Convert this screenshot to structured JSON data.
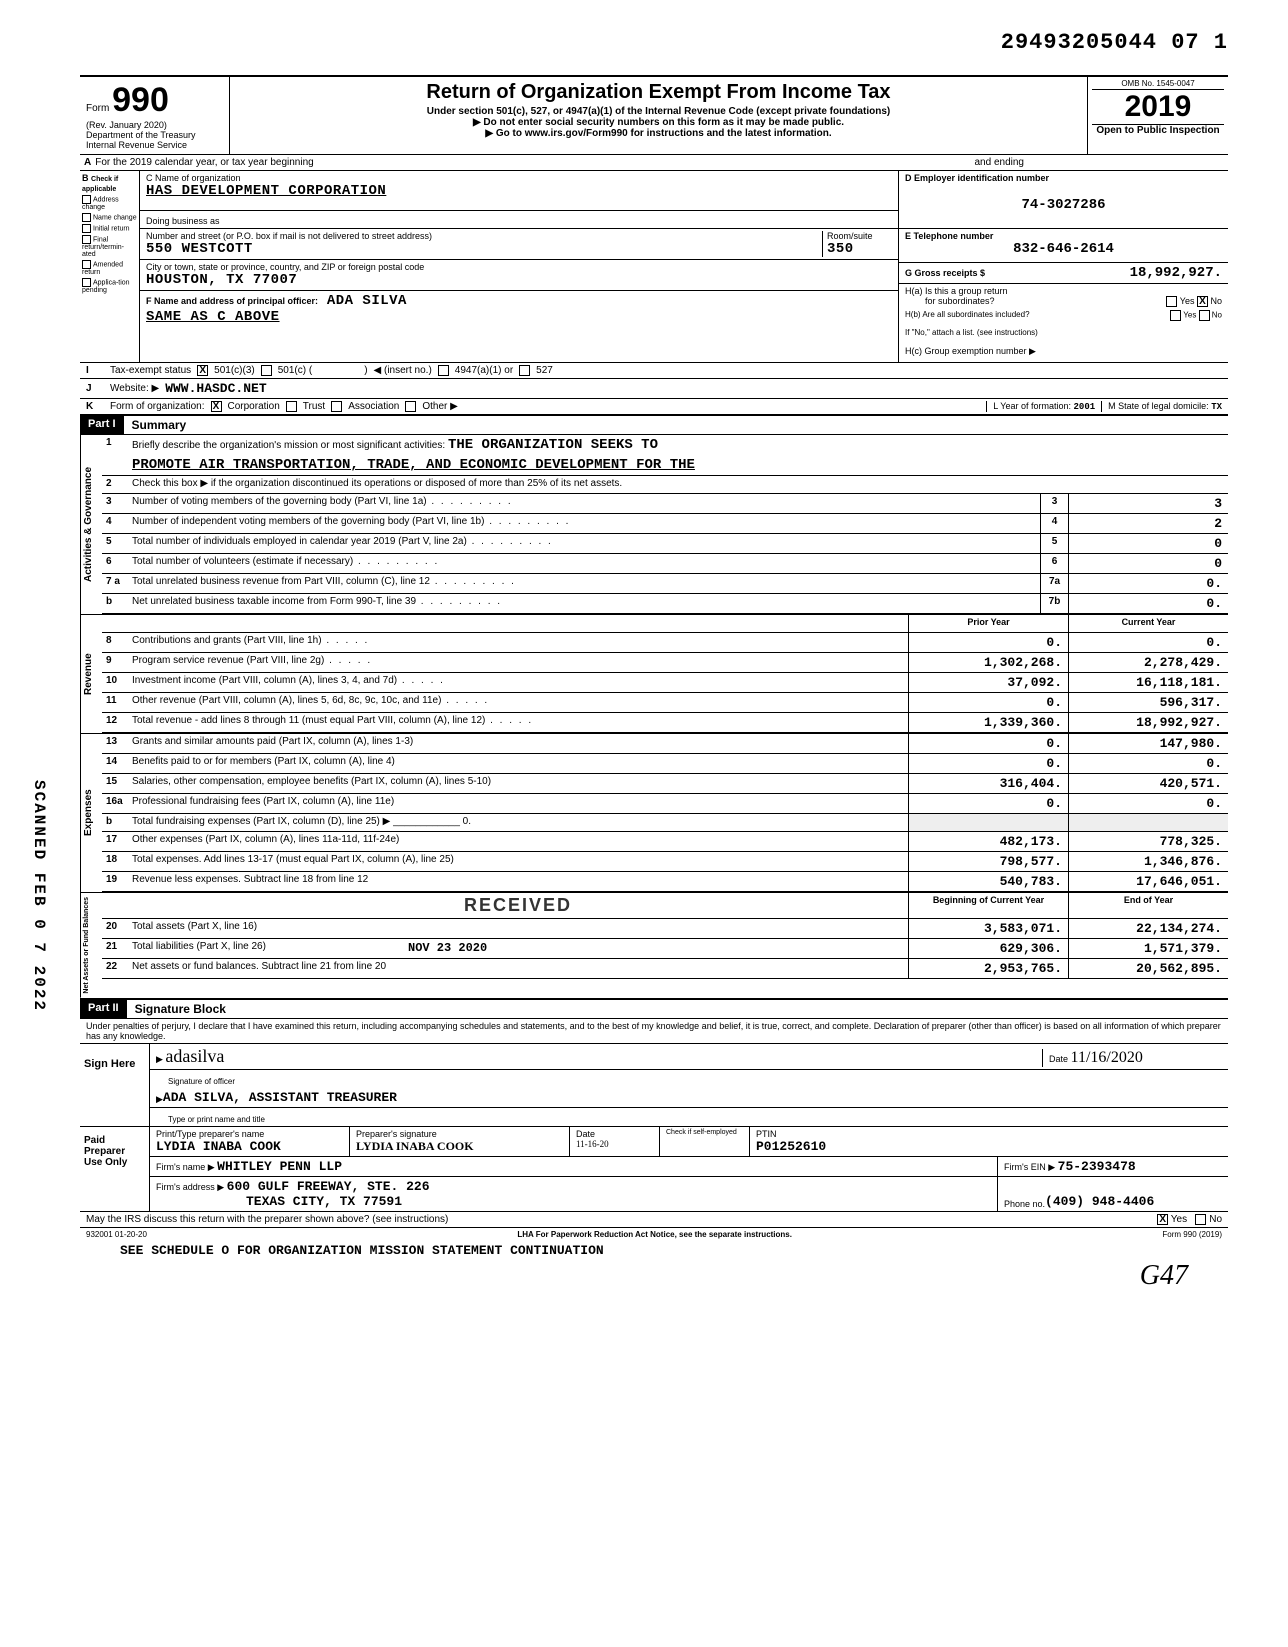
{
  "page_stamp": "29493205044 07  1",
  "scanned_stamp": "SCANNED FEB 0 7 2022",
  "header": {
    "form_label": "Form",
    "form_number": "990",
    "rev": "(Rev. January 2020)",
    "dept": "Department of the Treasury",
    "irs": "Internal Revenue Service",
    "title": "Return of Organization Exempt From Income Tax",
    "subtitle": "Under section 501(c), 527, or 4947(a)(1) of the Internal Revenue Code (except private foundations)",
    "arrow1": "▶ Do not enter social security numbers on this form as it may be made public.",
    "arrow2": "▶ Go to www.irs.gov/Form990 for instructions and the latest information.",
    "omb": "OMB No. 1545-0047",
    "year": "2019",
    "open": "Open to Public Inspection"
  },
  "row_a": {
    "label": "A",
    "text": "For the 2019 calendar year, or tax year beginning",
    "and_ending": "and ending"
  },
  "col_b": {
    "header": "B",
    "sub": "Check if applicable",
    "items": [
      "Address change",
      "Name change",
      "Initial return",
      "Final return/termin-ated",
      "Amended return",
      "Applica-tion pending"
    ]
  },
  "col_c": {
    "name_label": "C Name of organization",
    "name": "HAS DEVELOPMENT CORPORATION",
    "dba_label": "Doing business as",
    "addr_label": "Number and street (or P.O. box if mail is not delivered to street address)",
    "addr": "550 WESTCOTT",
    "room_label": "Room/suite",
    "room": "350",
    "city_label": "City or town, state or province, country, and ZIP or foreign postal code",
    "city": "HOUSTON, TX  77007",
    "officer_label": "F Name and address of principal officer:",
    "officer_name": "ADA SILVA",
    "officer_addr": "SAME AS C ABOVE"
  },
  "col_d": {
    "ein_label": "D  Employer identification number",
    "ein": "74-3027286",
    "phone_label": "E  Telephone number",
    "phone": "832-646-2614",
    "gross_label": "G  Gross receipts $",
    "gross": "18,992,927.",
    "ha_label": "H(a) Is this a group return",
    "ha_label2": "for subordinates?",
    "ha_no_checked": "X",
    "hb_label": "H(b) Are all subordinates included?",
    "hb_note": "If \"No,\" attach a list. (see instructions)",
    "hc_label": "H(c) Group exemption number ▶"
  },
  "row_i": {
    "label": "I",
    "text": "Tax-exempt status",
    "c3_checked": "X",
    "opts": [
      "501(c)(3)",
      "501(c) (",
      "◀ (insert no.)",
      "4947(a)(1) or",
      "527"
    ]
  },
  "row_j": {
    "label": "J",
    "text": "Website: ▶",
    "value": "WWW.HASDC.NET"
  },
  "row_k": {
    "label": "K",
    "text": "Form of organization:",
    "corp_checked": "X",
    "opts": [
      "Corporation",
      "Trust",
      "Association",
      "Other ▶"
    ],
    "l_text": "L Year of formation:",
    "l_val": "2001",
    "m_text": "M State of legal domicile:",
    "m_val": "TX"
  },
  "part1": {
    "header": "Part I",
    "title": "Summary",
    "vert_activities": "Activities & Governance",
    "vert_revenue": "Revenue",
    "vert_expenses": "Expenses",
    "vert_netassets": "Net Assets or Fund Balances",
    "line1_label": "Briefly describe the organization's mission or most significant activities:",
    "line1_val": "THE ORGANIZATION SEEKS TO",
    "line1_val2": "PROMOTE AIR TRANSPORTATION, TRADE, AND ECONOMIC DEVELOPMENT FOR THE",
    "line2": "Check this box ▶       if the organization discontinued its operations or disposed of more than 25% of its net assets.",
    "rows_gov": [
      {
        "n": "3",
        "d": "Number of voting members of the governing body (Part VI, line 1a)",
        "box": "3",
        "v": "3"
      },
      {
        "n": "4",
        "d": "Number of independent voting members of the governing body (Part VI, line 1b)",
        "box": "4",
        "v": "2"
      },
      {
        "n": "5",
        "d": "Total number of individuals employed in calendar year 2019 (Part V, line 2a)",
        "box": "5",
        "v": "0"
      },
      {
        "n": "6",
        "d": "Total number of volunteers (estimate if necessary)",
        "box": "6",
        "v": "0"
      },
      {
        "n": "7 a",
        "d": "Total unrelated business revenue from Part VIII, column (C), line 12",
        "box": "7a",
        "v": "0."
      },
      {
        "n": "b",
        "d": "Net unrelated business taxable income from Form 990-T, line 39",
        "box": "7b",
        "v": "0."
      }
    ],
    "col_hdr_prior": "Prior Year",
    "col_hdr_current": "Current Year",
    "rows_rev": [
      {
        "n": "8",
        "d": "Contributions and grants (Part VIII, line 1h)",
        "p": "0.",
        "c": "0."
      },
      {
        "n": "9",
        "d": "Program service revenue (Part VIII, line 2g)",
        "p": "1,302,268.",
        "c": "2,278,429."
      },
      {
        "n": "10",
        "d": "Investment income (Part VIII, column (A), lines 3, 4, and 7d)",
        "p": "37,092.",
        "c": "16,118,181."
      },
      {
        "n": "11",
        "d": "Other revenue (Part VIII, column (A), lines 5, 6d, 8c, 9c, 10c, and 11e)",
        "p": "0.",
        "c": "596,317."
      },
      {
        "n": "12",
        "d": "Total revenue - add lines 8 through 11 (must equal Part VIII, column (A), line 12)",
        "p": "1,339,360.",
        "c": "18,992,927."
      }
    ],
    "rows_exp": [
      {
        "n": "13",
        "d": "Grants and similar amounts paid (Part IX, column (A), lines 1-3)",
        "p": "0.",
        "c": "147,980."
      },
      {
        "n": "14",
        "d": "Benefits paid to or for members (Part IX, column (A), line 4)",
        "p": "0.",
        "c": "0."
      },
      {
        "n": "15",
        "d": "Salaries, other compensation, employee benefits (Part IX, column (A), lines 5-10)",
        "p": "316,404.",
        "c": "420,571."
      },
      {
        "n": "16a",
        "d": "Professional fundraising fees (Part IX, column (A), line 11e)",
        "p": "0.",
        "c": "0."
      },
      {
        "n": "b",
        "d": "Total fundraising expenses (Part IX, column (D), line 25)   ▶ ____________ 0.",
        "p": "",
        "c": ""
      },
      {
        "n": "17",
        "d": "Other expenses (Part IX, column (A), lines 11a-11d, 11f-24e)",
        "p": "482,173.",
        "c": "778,325."
      },
      {
        "n": "18",
        "d": "Total expenses. Add lines 13-17 (must equal Part IX, column (A), line 25)",
        "p": "798,577.",
        "c": "1,346,876."
      },
      {
        "n": "19",
        "d": "Revenue less expenses. Subtract line 18 from line 12",
        "p": "540,783.",
        "c": "17,646,051."
      }
    ],
    "received_stamp": "RECEIVED",
    "received_date": "NOV 23 2020",
    "col_hdr_begin": "Beginning of Current Year",
    "col_hdr_end": "End of Year",
    "rows_net": [
      {
        "n": "20",
        "d": "Total assets (Part X, line 16)",
        "p": "3,583,071.",
        "c": "22,134,274."
      },
      {
        "n": "21",
        "d": "Total liabilities (Part X, line 26)",
        "p": "629,306.",
        "c": "1,571,379."
      },
      {
        "n": "22",
        "d": "Net assets or fund balances. Subtract line 21 from line 20",
        "p": "2,953,765.",
        "c": "20,562,895."
      }
    ]
  },
  "part2": {
    "header": "Part II",
    "title": "Signature Block",
    "perjury": "Under penalties of perjury, I declare that I have examined this return, including accompanying schedules and statements, and to the best of my knowledge and belief, it is true, correct, and complete. Declaration of preparer (other than officer) is based on all information of which preparer has any knowledge."
  },
  "sign": {
    "label": "Sign Here",
    "sig_cursive": "adasilva",
    "sig_label": "Signature of officer",
    "date_label": "Date",
    "date": "11/16/2020",
    "name": "ADA SILVA, ASSISTANT TREASURER",
    "name_label": "Type or print name and title"
  },
  "prep": {
    "label": "Paid Preparer Use Only",
    "c1_label": "Print/Type preparer's name",
    "c1": "LYDIA INABA COOK",
    "c2_label": "Preparer's signature",
    "c2": "LYDIA INABA COOK",
    "c3_label": "Date",
    "c3": "11-16-20",
    "c4_label": "Check      if self-employed",
    "c5_label": "PTIN",
    "c5": "P01252610",
    "firm_label": "Firm's name ▶",
    "firm": "WHITLEY PENN LLP",
    "ein_label": "Firm's EIN ▶",
    "ein": "75-2393478",
    "addr_label": "Firm's address ▶",
    "addr": "600 GULF FREEWAY, STE. 226",
    "addr2": "TEXAS CITY, TX 77591",
    "phone_label": "Phone no.",
    "phone": "(409) 948-4406"
  },
  "footer": {
    "discuss": "May the IRS discuss this return with the preparer shown above? (see instructions)",
    "yes_checked": "X",
    "code": "932001 01-20-20",
    "lha": "LHA  For Paperwork Reduction Act Notice, see the separate instructions.",
    "form": "Form 990 (2019)",
    "cont": "SEE SCHEDULE O FOR ORGANIZATION MISSION STATEMENT CONTINUATION",
    "hand": "G47"
  }
}
